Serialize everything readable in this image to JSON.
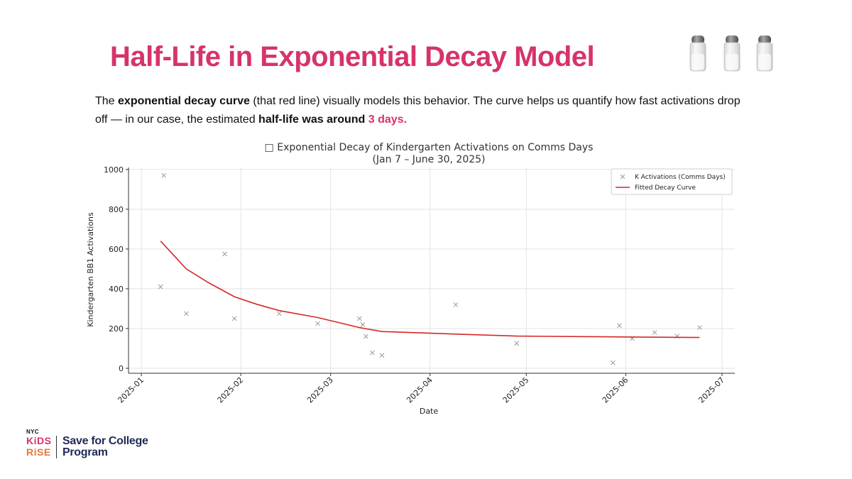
{
  "slide": {
    "title": "Half-Life in Exponential Decay Model",
    "body": {
      "p1": "The ",
      "b1": "exponential decay curve",
      "p2": " (that red line) visually models this behavior. The curve helps us quantify how fast activations drop off — in our case, the estimated ",
      "b2": "half-life was around",
      "p3": " ",
      "highlight": "3 days",
      "p4": "."
    },
    "logo": {
      "nyc": "NYC",
      "kids": "KiDS",
      "rise": "RiSE",
      "program": "Save for College Program"
    },
    "accent_color": "#d6336c",
    "decoration": "salt-shaker-icons"
  },
  "chart_data": {
    "type": "scatter",
    "title": "□ Exponential Decay of Kindergarten Activations on Comms Days",
    "subtitle": "(Jan 7 – June 30, 2025)",
    "xlabel": "Date",
    "ylabel": "Kindergarten BB1 Activations",
    "xlim": [
      "2024-12-28",
      "2025-07-05"
    ],
    "ylim": [
      -25,
      1010
    ],
    "x_ticks": [
      "2025-01",
      "2025-02",
      "2025-03",
      "2025-04",
      "2025-05",
      "2025-06",
      "2025-07"
    ],
    "y_ticks": [
      0,
      200,
      400,
      600,
      800,
      1000
    ],
    "grid": true,
    "legend_position": "top-right",
    "series": [
      {
        "name": "K Activations (Comms Days)",
        "kind": "scatter",
        "marker": "x",
        "color": "#9a9a9a",
        "x": [
          "2025-01-07",
          "2025-01-08",
          "2025-01-15",
          "2025-01-27",
          "2025-01-30",
          "2025-02-13",
          "2025-02-25",
          "2025-03-10",
          "2025-03-11",
          "2025-03-12",
          "2025-03-14",
          "2025-03-17",
          "2025-04-09",
          "2025-04-28",
          "2025-05-28",
          "2025-05-30",
          "2025-06-03",
          "2025-06-10",
          "2025-06-17",
          "2025-06-24"
        ],
        "y": [
          410,
          970,
          275,
          575,
          250,
          275,
          225,
          250,
          220,
          160,
          78,
          65,
          320,
          125,
          28,
          215,
          150,
          180,
          162,
          205
        ]
      },
      {
        "name": "Fitted Decay Curve",
        "kind": "line",
        "color": "#d62728",
        "x": [
          "2025-01-07",
          "2025-01-15",
          "2025-01-22",
          "2025-01-30",
          "2025-02-06",
          "2025-02-13",
          "2025-02-25",
          "2025-03-10",
          "2025-03-17",
          "2025-04-09",
          "2025-04-28",
          "2025-05-28",
          "2025-06-24"
        ],
        "y": [
          640,
          500,
          430,
          360,
          322,
          290,
          255,
          205,
          185,
          172,
          162,
          158,
          155
        ]
      }
    ]
  }
}
